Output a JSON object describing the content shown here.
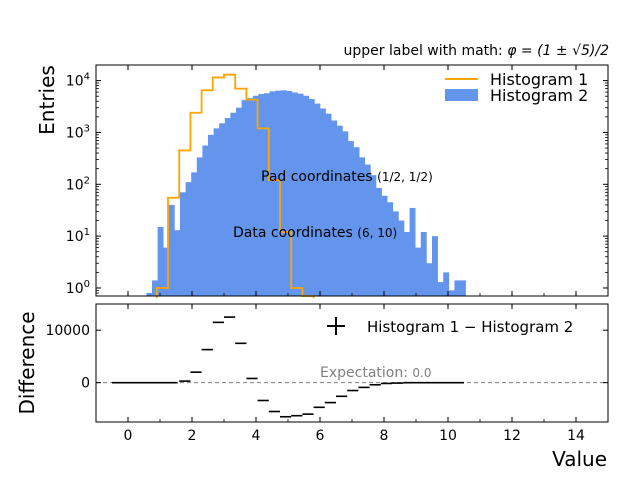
{
  "chart_data": [
    {
      "type": "bar",
      "panel": "upper",
      "upper_label": "upper label with math: ",
      "upper_label_math": "φ = (1 ± √5)/2",
      "ylabel": "Entries",
      "yscale": "log",
      "ylim": [
        0.7,
        20000
      ],
      "xlim": [
        -1,
        15
      ],
      "yticks": [
        {
          "value": 1,
          "label": "10",
          "exp": "0"
        },
        {
          "value": 10,
          "label": "10",
          "exp": "1"
        },
        {
          "value": 100,
          "label": "10",
          "exp": "2"
        },
        {
          "value": 1000,
          "label": "10",
          "exp": "3"
        },
        {
          "value": 10000,
          "label": "10",
          "exp": "4"
        }
      ],
      "bin_width": 0.175,
      "series": [
        {
          "name": "Histogram 1",
          "style": "step",
          "color": "#FFA500",
          "bins": [
            {
              "x": 0.9,
              "y": 1
            },
            {
              "x": 1.25,
              "y": 55
            },
            {
              "x": 1.6,
              "y": 450
            },
            {
              "x": 1.95,
              "y": 2400
            },
            {
              "x": 2.3,
              "y": 6500
            },
            {
              "x": 2.65,
              "y": 11500
            },
            {
              "x": 3.0,
              "y": 13000
            },
            {
              "x": 3.35,
              "y": 7000
            },
            {
              "x": 3.7,
              "y": 4300
            },
            {
              "x": 4.05,
              "y": 1200
            },
            {
              "x": 4.4,
              "y": 120
            },
            {
              "x": 4.75,
              "y": 12
            },
            {
              "x": 5.1,
              "y": 1
            },
            {
              "x": 5.45,
              "y": 0.5
            }
          ]
        },
        {
          "name": "Histogram 2",
          "style": "filled",
          "color": "#6495ED",
          "bins": [
            {
              "x": 0.575,
              "y": 0.8
            },
            {
              "x": 0.75,
              "y": 1.4
            },
            {
              "x": 0.925,
              "y": 15
            },
            {
              "x": 1.1,
              "y": 6
            },
            {
              "x": 1.275,
              "y": 40
            },
            {
              "x": 1.45,
              "y": 13
            },
            {
              "x": 1.625,
              "y": 70
            },
            {
              "x": 1.8,
              "y": 110
            },
            {
              "x": 1.975,
              "y": 170
            },
            {
              "x": 2.15,
              "y": 330
            },
            {
              "x": 2.325,
              "y": 560
            },
            {
              "x": 2.5,
              "y": 900
            },
            {
              "x": 2.675,
              "y": 1200
            },
            {
              "x": 2.85,
              "y": 1500
            },
            {
              "x": 3.025,
              "y": 1900
            },
            {
              "x": 3.2,
              "y": 2400
            },
            {
              "x": 3.375,
              "y": 3000
            },
            {
              "x": 3.55,
              "y": 4200
            },
            {
              "x": 3.725,
              "y": 4600
            },
            {
              "x": 3.9,
              "y": 5100
            },
            {
              "x": 4.075,
              "y": 5500
            },
            {
              "x": 4.25,
              "y": 5700
            },
            {
              "x": 4.425,
              "y": 6200
            },
            {
              "x": 4.6,
              "y": 6400
            },
            {
              "x": 4.775,
              "y": 6500
            },
            {
              "x": 4.95,
              "y": 6300
            },
            {
              "x": 5.125,
              "y": 5900
            },
            {
              "x": 5.3,
              "y": 5600
            },
            {
              "x": 5.475,
              "y": 5100
            },
            {
              "x": 5.65,
              "y": 4400
            },
            {
              "x": 5.825,
              "y": 3600
            },
            {
              "x": 6.0,
              "y": 2900
            },
            {
              "x": 6.175,
              "y": 2300
            },
            {
              "x": 6.35,
              "y": 1700
            },
            {
              "x": 6.525,
              "y": 1350
            },
            {
              "x": 6.7,
              "y": 1050
            },
            {
              "x": 6.875,
              "y": 680
            },
            {
              "x": 7.05,
              "y": 520
            },
            {
              "x": 7.225,
              "y": 330
            },
            {
              "x": 7.4,
              "y": 240
            },
            {
              "x": 7.575,
              "y": 150
            },
            {
              "x": 7.75,
              "y": 85
            },
            {
              "x": 7.925,
              "y": 60
            },
            {
              "x": 8.1,
              "y": 45
            },
            {
              "x": 8.275,
              "y": 30
            },
            {
              "x": 8.45,
              "y": 20
            },
            {
              "x": 8.625,
              "y": 12
            },
            {
              "x": 8.8,
              "y": 35
            },
            {
              "x": 8.975,
              "y": 6
            },
            {
              "x": 9.15,
              "y": 12
            },
            {
              "x": 9.325,
              "y": 3
            },
            {
              "x": 9.5,
              "y": 10
            },
            {
              "x": 9.675,
              "y": 1.3
            },
            {
              "x": 9.85,
              "y": 2
            },
            {
              "x": 10.025,
              "y": 0.9
            },
            {
              "x": 10.2,
              "y": 1.4
            },
            {
              "x": 10.375,
              "y": 1.4
            }
          ]
        }
      ],
      "annotations": [
        {
          "text": "Pad coordinates ",
          "math": "(1/2, 1/2)",
          "coords": "pad",
          "at": [
            0.5,
            0.5
          ]
        },
        {
          "text": "Data coordinates ",
          "math": "(6, 10)",
          "coords": "data",
          "at": [
            6,
            10
          ]
        }
      ],
      "legend": {
        "placement": "top-right",
        "entries": [
          "Histogram 1",
          "Histogram 2"
        ]
      }
    },
    {
      "type": "scatter",
      "panel": "lower",
      "ylabel": "Difference",
      "xlabel": "Value",
      "xlim": [
        -1,
        15
      ],
      "ylim": [
        -7500,
        15000
      ],
      "xticks": [
        0,
        2,
        4,
        6,
        8,
        10,
        12,
        14
      ],
      "yticks": [
        0,
        10000
      ],
      "series": [
        {
          "name": "Histogram 1 − Histogram 2",
          "style": "errorbar",
          "color": "#000000",
          "points": [
            {
              "x0": -0.5,
              "x1": 1.55,
              "y": 0
            },
            {
              "x0": 1.6,
              "y": 300,
              "x1": 1.95
            },
            {
              "x0": 1.95,
              "x1": 2.3,
              "y": 2000
            },
            {
              "x0": 2.3,
              "x1": 2.65,
              "y": 6300
            },
            {
              "x0": 2.65,
              "x1": 3.0,
              "y": 11500
            },
            {
              "x0": 3.0,
              "x1": 3.35,
              "y": 12500
            },
            {
              "x0": 3.35,
              "x1": 3.7,
              "y": 7500
            },
            {
              "x0": 3.7,
              "x1": 4.05,
              "y": 800
            },
            {
              "x0": 4.05,
              "x1": 4.4,
              "y": -3400
            },
            {
              "x0": 4.4,
              "x1": 4.75,
              "y": -5500
            },
            {
              "x0": 4.75,
              "x1": 5.1,
              "y": -6500
            },
            {
              "x0": 5.1,
              "x1": 5.45,
              "y": -6300
            },
            {
              "x0": 5.45,
              "x1": 5.8,
              "y": -6000
            },
            {
              "x0": 5.8,
              "x1": 6.15,
              "y": -4700
            },
            {
              "x0": 6.15,
              "x1": 6.5,
              "y": -3800
            },
            {
              "x0": 6.5,
              "x1": 6.85,
              "y": -2600
            },
            {
              "x0": 6.85,
              "x1": 7.2,
              "y": -1500
            },
            {
              "x0": 7.2,
              "x1": 7.55,
              "y": -900
            },
            {
              "x0": 7.55,
              "x1": 7.9,
              "y": -400
            },
            {
              "x0": 7.9,
              "x1": 8.25,
              "y": -150
            },
            {
              "x0": 8.25,
              "x1": 8.6,
              "y": -80
            },
            {
              "x0": 8.6,
              "x1": 10.5,
              "y": 0
            }
          ]
        }
      ],
      "reference_line": {
        "y": 0,
        "style": "dashed",
        "color": "#808080",
        "label": "Expectation: ",
        "label_value": "0.0"
      },
      "legend": {
        "placement": "top-right",
        "entries": [
          "Histogram 1 − Histogram 2"
        ]
      }
    }
  ]
}
